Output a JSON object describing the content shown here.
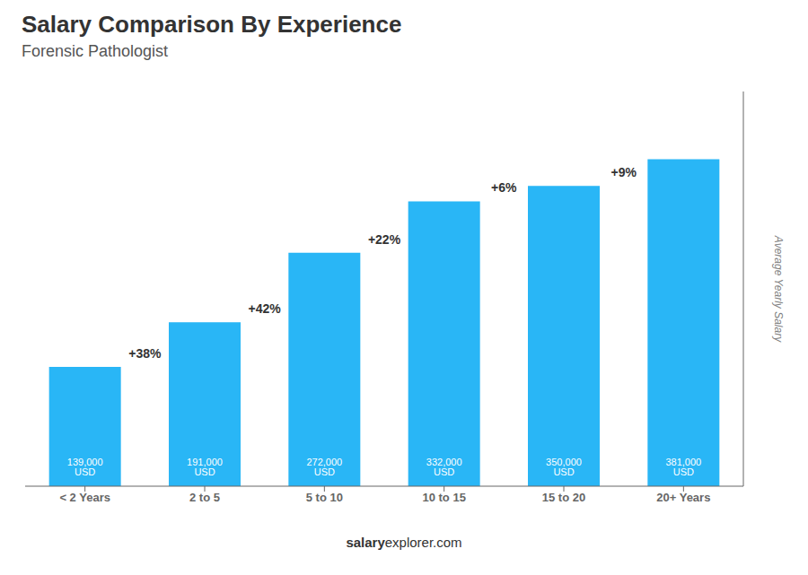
{
  "chart_data": {
    "type": "bar",
    "title": "Salary Comparison By Experience",
    "subtitle": "Forensic Pathologist",
    "categories": [
      "< 2 Years",
      "2 to 5",
      "5 to 10",
      "10 to 15",
      "15 to 20",
      "20+ Years"
    ],
    "values": [
      139000,
      191000,
      272000,
      332000,
      350000,
      381000
    ],
    "value_labels": [
      "139,000 USD",
      "191,000 USD",
      "272,000 USD",
      "332,000 USD",
      "350,000 USD",
      "381,000 USD"
    ],
    "data_labels": true,
    "annotations": [
      "+38%",
      "+42%",
      "+22%",
      "+6%",
      "+9%"
    ],
    "ylabel": "Average Yearly Salary",
    "watermark": {
      "bold": "salary",
      "light": "explorer.com"
    },
    "color": "#29b6f6",
    "ylim": [
      0,
      460000
    ],
    "tick_labels": "x"
  }
}
